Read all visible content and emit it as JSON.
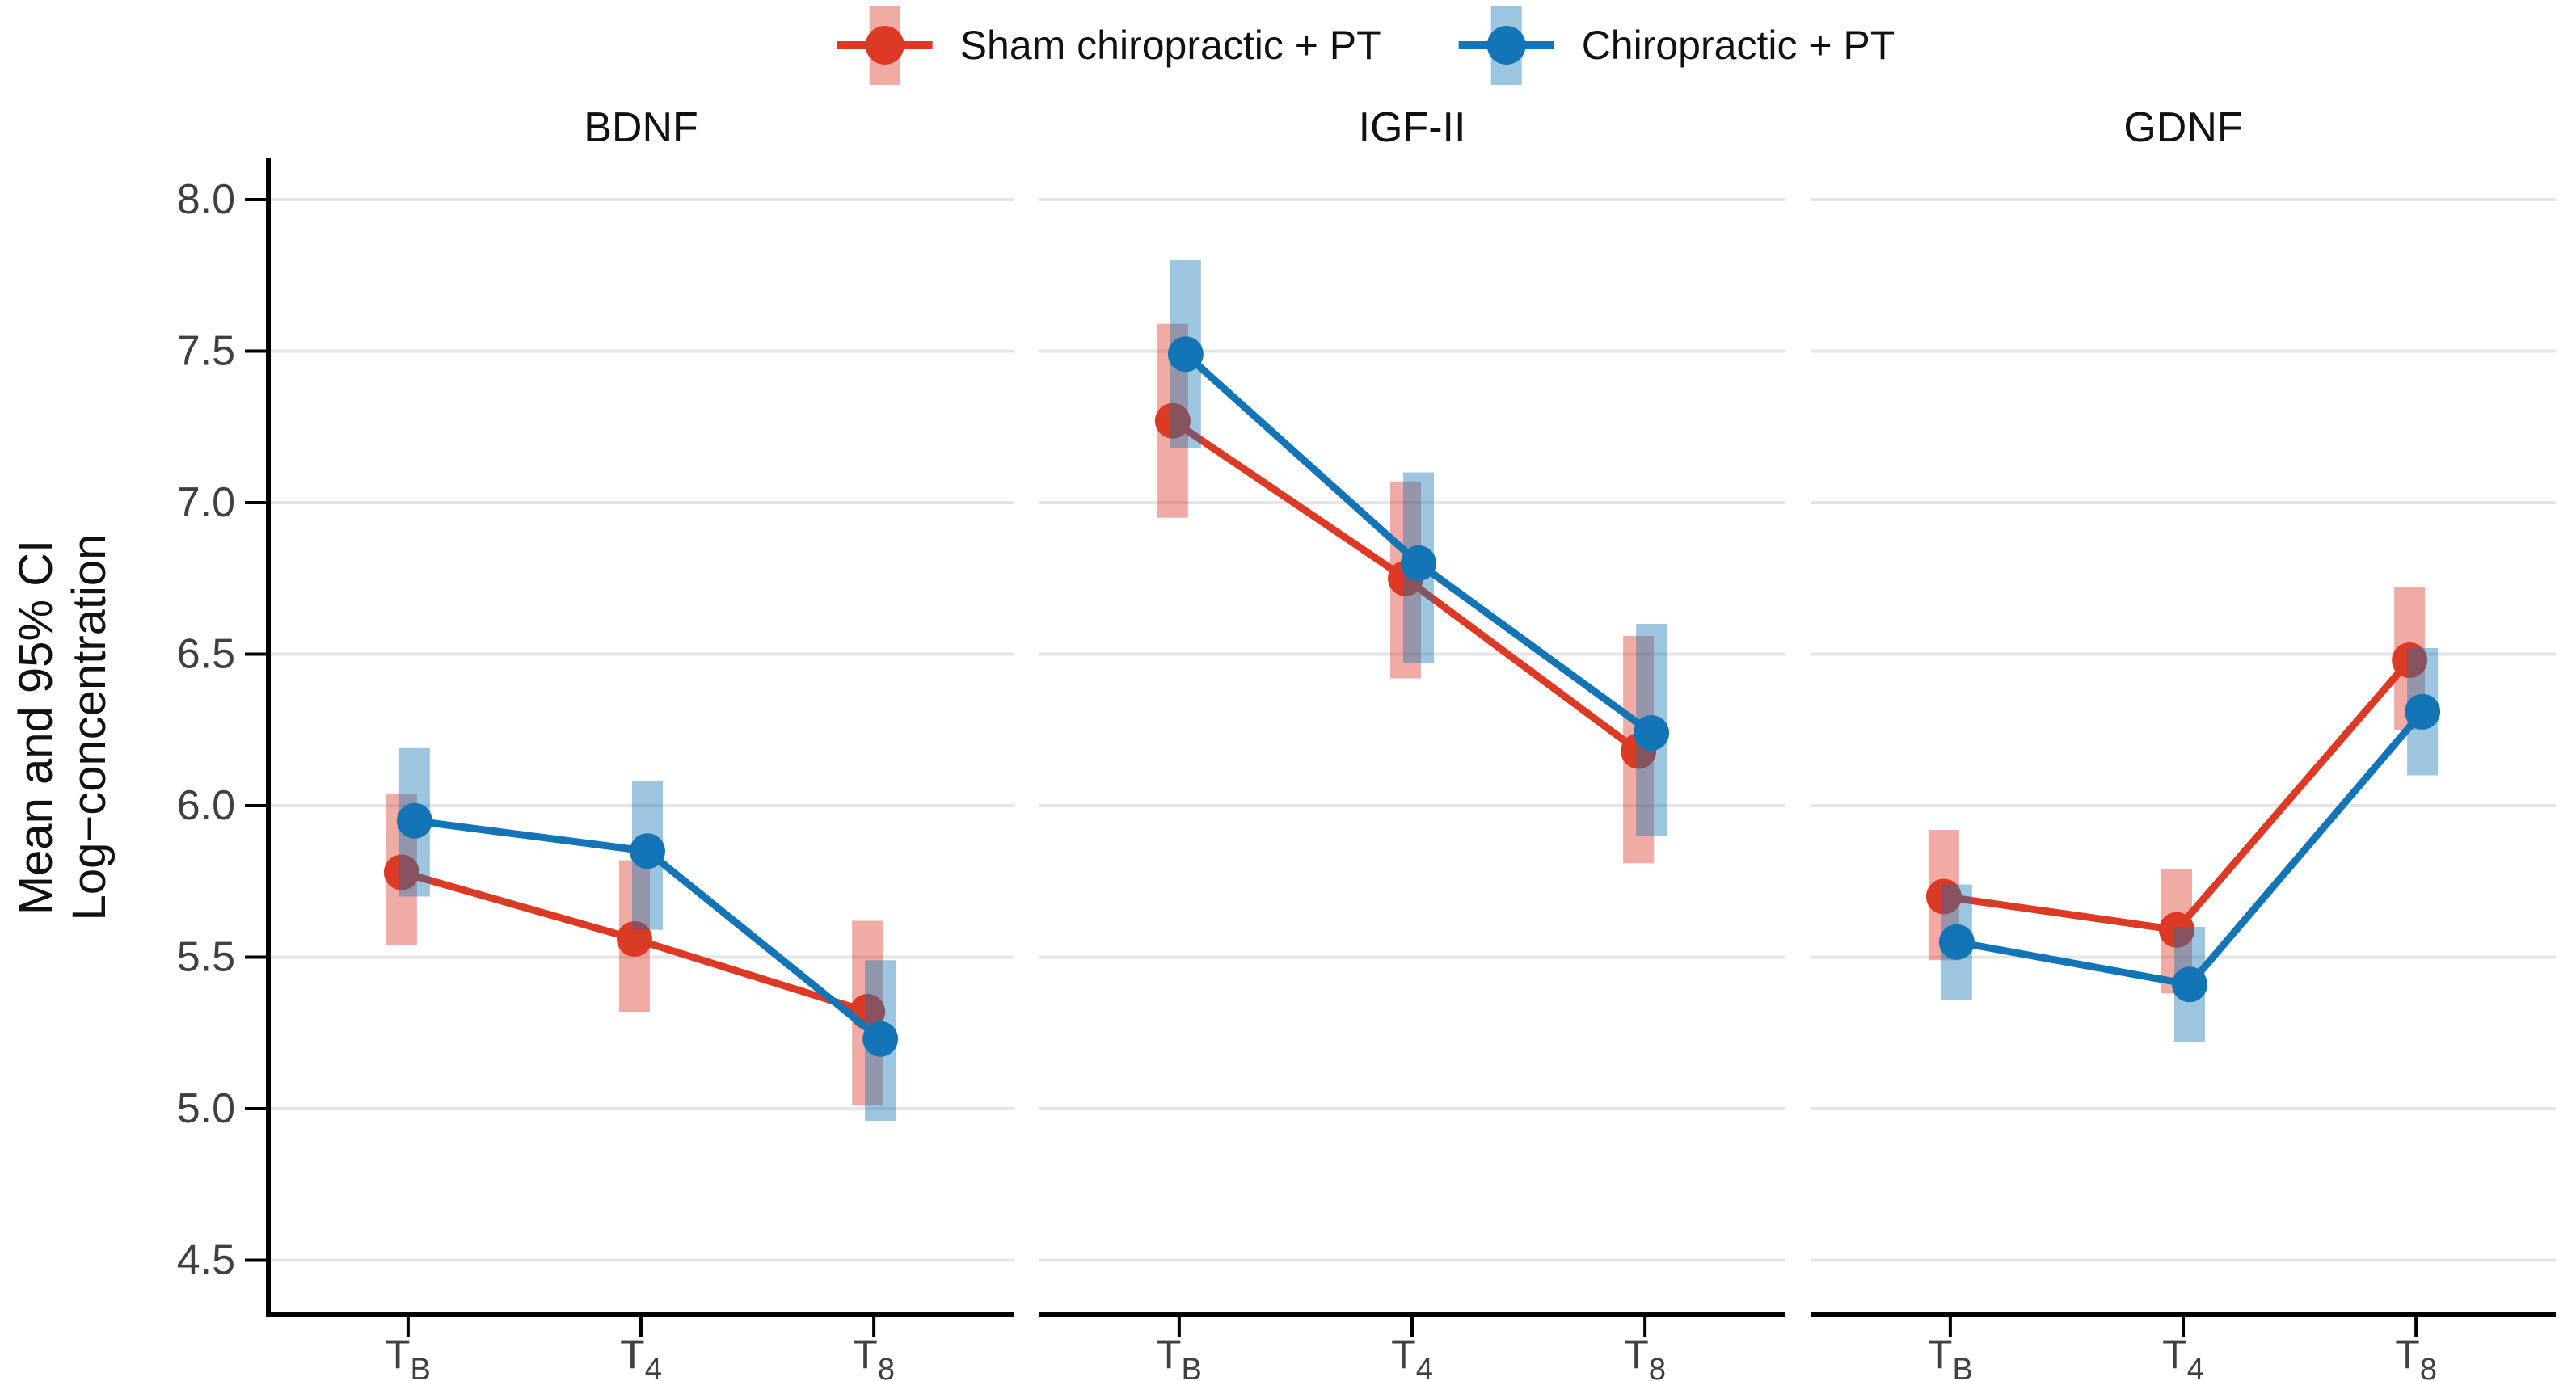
{
  "figure": {
    "legend": {
      "items": [
        {
          "label": "Sham chiropractic + PT",
          "color": "#DC3A25",
          "band_color": "rgba(220,58,37,0.42)"
        },
        {
          "label": "Chiropractic + PT",
          "color": "#1375B5",
          "band_color": "rgba(19,117,181,0.42)"
        }
      ]
    },
    "y_axis_title_line1": "Mean and 95% CI",
    "y_axis_title_line2": "Log−concentration",
    "colors": {
      "gridline": "#E5E5E5",
      "axis": "#000000",
      "tick_label": "#404040",
      "title_text": "#111111"
    }
  },
  "chart_data": {
    "type": "line",
    "subtype": "faceted point-range (mean and 95% CI)",
    "ylabel": "Mean and 95% CI Log−concentration",
    "xlabel": "",
    "legend_position": "top",
    "grid": "horizontal-only",
    "ylim": [
      4.32,
      8.14
    ],
    "y_ticks": [
      8.0,
      7.5,
      7.0,
      6.5,
      6.0,
      5.5,
      5.0,
      4.5
    ],
    "categories": [
      "TB",
      "T4",
      "T8"
    ],
    "x_tick_labels": [
      {
        "base": "T",
        "sub": "B"
      },
      {
        "base": "T",
        "sub": "4"
      },
      {
        "base": "T",
        "sub": "8"
      }
    ],
    "panels": [
      {
        "title": "BDNF",
        "series": [
          {
            "name": "Sham chiropractic + PT",
            "means": [
              5.78,
              5.56,
              5.32
            ],
            "ci_low": [
              5.54,
              5.32,
              5.01
            ],
            "ci_high": [
              6.04,
              5.82,
              5.62
            ]
          },
          {
            "name": "Chiropractic + PT",
            "means": [
              5.95,
              5.85,
              5.23
            ],
            "ci_low": [
              5.7,
              5.59,
              4.96
            ],
            "ci_high": [
              6.19,
              6.08,
              5.49
            ]
          }
        ]
      },
      {
        "title": "IGF-II",
        "series": [
          {
            "name": "Sham chiropractic + PT",
            "means": [
              7.27,
              6.75,
              6.18
            ],
            "ci_low": [
              6.95,
              6.42,
              5.81
            ],
            "ci_high": [
              7.59,
              7.07,
              6.56
            ]
          },
          {
            "name": "Chiropractic + PT",
            "means": [
              7.49,
              6.8,
              6.24
            ],
            "ci_low": [
              7.18,
              6.47,
              5.9
            ],
            "ci_high": [
              7.8,
              7.1,
              6.6
            ]
          }
        ]
      },
      {
        "title": "GDNF",
        "series": [
          {
            "name": "Sham chiropractic + PT",
            "means": [
              5.7,
              5.59,
              6.48
            ],
            "ci_low": [
              5.49,
              5.38,
              6.25
            ],
            "ci_high": [
              5.92,
              5.79,
              6.72
            ]
          },
          {
            "name": "Chiropractic + PT",
            "means": [
              5.55,
              5.41,
              6.31
            ],
            "ci_low": [
              5.36,
              5.22,
              6.1
            ],
            "ci_high": [
              5.74,
              5.6,
              6.52
            ]
          }
        ]
      }
    ]
  }
}
